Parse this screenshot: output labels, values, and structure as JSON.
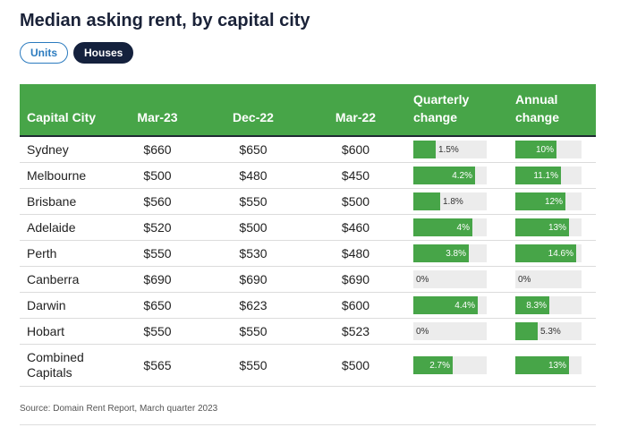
{
  "title": "Median asking rent, by capital city",
  "toggles": {
    "units": "Units",
    "houses": "Houses"
  },
  "columns": {
    "city": "Capital City",
    "mar23": "Mar-23",
    "dec22": "Dec-22",
    "mar22": "Mar-22",
    "quarterly_line1": "Quarterly",
    "quarterly_line2": "change",
    "annual_line1": "Annual",
    "annual_line2": "change"
  },
  "chart_data": {
    "type": "table",
    "title": "Median asking rent, by capital city",
    "quarterly_max": 5,
    "annual_max": 16,
    "rows": [
      {
        "city": "Sydney",
        "mar23": "$660",
        "dec22": "$650",
        "mar22": "$600",
        "quarterly": 1.5,
        "quarterly_label": "1.5%",
        "annual": 10,
        "annual_label": "10%"
      },
      {
        "city": "Melbourne",
        "mar23": "$500",
        "dec22": "$480",
        "mar22": "$450",
        "quarterly": 4.2,
        "quarterly_label": "4.2%",
        "annual": 11.1,
        "annual_label": "11.1%"
      },
      {
        "city": "Brisbane",
        "mar23": "$560",
        "dec22": "$550",
        "mar22": "$500",
        "quarterly": 1.8,
        "quarterly_label": "1.8%",
        "annual": 12,
        "annual_label": "12%"
      },
      {
        "city": "Adelaide",
        "mar23": "$520",
        "dec22": "$500",
        "mar22": "$460",
        "quarterly": 4,
        "quarterly_label": "4%",
        "annual": 13,
        "annual_label": "13%"
      },
      {
        "city": "Perth",
        "mar23": "$550",
        "dec22": "$530",
        "mar22": "$480",
        "quarterly": 3.8,
        "quarterly_label": "3.8%",
        "annual": 14.6,
        "annual_label": "14.6%"
      },
      {
        "city": "Canberra",
        "mar23": "$690",
        "dec22": "$690",
        "mar22": "$690",
        "quarterly": 0,
        "quarterly_label": "0%",
        "annual": 0,
        "annual_label": "0%"
      },
      {
        "city": "Darwin",
        "mar23": "$650",
        "dec22": "$623",
        "mar22": "$600",
        "quarterly": 4.4,
        "quarterly_label": "4.4%",
        "annual": 8.3,
        "annual_label": "8.3%"
      },
      {
        "city": "Hobart",
        "mar23": "$550",
        "dec22": "$550",
        "mar22": "$523",
        "quarterly": 0,
        "quarterly_label": "0%",
        "annual": 5.3,
        "annual_label": "5.3%"
      },
      {
        "city": "Combined Capitals",
        "mar23": "$565",
        "dec22": "$550",
        "mar22": "$500",
        "quarterly": 2.7,
        "quarterly_label": "2.7%",
        "annual": 13,
        "annual_label": "13%"
      }
    ]
  },
  "source": "Source: Domain Rent Report, March quarter 2023",
  "colors": {
    "green": "#47a548",
    "navy": "#14213d",
    "blue": "#2b7bbf",
    "track": "#ececec"
  }
}
